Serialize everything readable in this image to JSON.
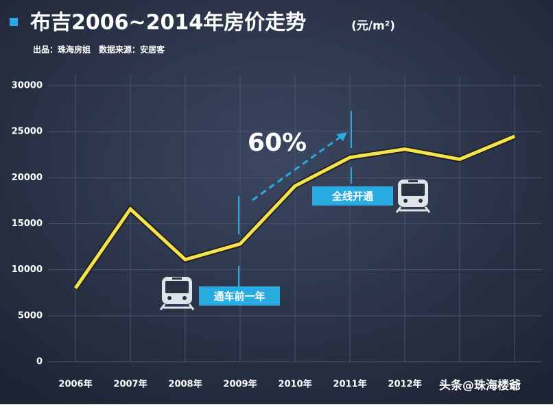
{
  "chart_data": {
    "type": "line",
    "title": "布吉2006~2014年房价走势",
    "y_unit": "(元/m²)",
    "subtitle": "出品：珠海房姐　数据来源：安居客",
    "categories": [
      "2006年",
      "2007年",
      "2008年",
      "2009年",
      "2010年",
      "2011年",
      "2012年",
      null,
      null
    ],
    "series": [
      {
        "color": "#f4e24e",
        "values": [
          8000,
          16600,
          11100,
          12800,
          19100,
          22200,
          23100,
          22000,
          24500
        ]
      }
    ],
    "ylim": [
      0,
      30000
    ],
    "yticks": [
      0,
      5000,
      10000,
      15000,
      20000,
      25000,
      30000
    ],
    "grid": true,
    "annotations": [
      "60%",
      "全线开通",
      "通车前一年"
    ],
    "watermark": "头条@珠海楼爺"
  }
}
